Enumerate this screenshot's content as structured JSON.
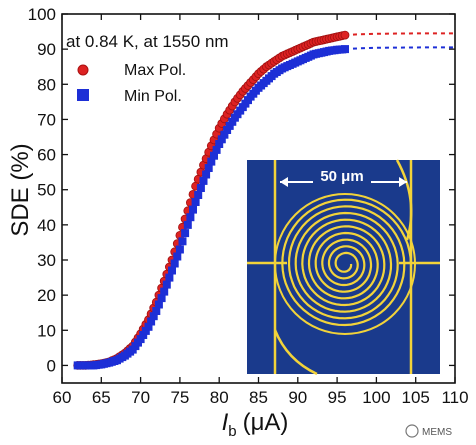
{
  "chart_data": {
    "type": "scatter",
    "xlabel_symbol": "I",
    "xlabel_sub": "b",
    "xlabel_unit": "(μA)",
    "ylabel": "SDE (%)",
    "xlim": [
      60,
      110
    ],
    "ylim": [
      -5,
      100
    ],
    "xticks": [
      60,
      65,
      70,
      75,
      80,
      85,
      90,
      95,
      100,
      105,
      110
    ],
    "yticks": [
      0,
      10,
      20,
      30,
      40,
      50,
      60,
      70,
      80,
      90,
      100
    ],
    "annotation": "at 0.84 K, at 1550 nm",
    "legend_position": "top-left",
    "series": [
      {
        "name": "Max Pol.",
        "marker": "circle",
        "color": "#dd2222",
        "fit_plateau": 94.5,
        "points": [
          [
            62,
            0
          ],
          [
            63,
            0
          ],
          [
            64,
            0.2
          ],
          [
            65,
            0.5
          ],
          [
            66,
            1
          ],
          [
            67,
            2
          ],
          [
            68,
            3.5
          ],
          [
            69,
            5.5
          ],
          [
            70,
            9
          ],
          [
            71,
            13
          ],
          [
            72,
            18
          ],
          [
            73,
            24
          ],
          [
            74,
            30
          ],
          [
            75,
            37
          ],
          [
            76,
            44
          ],
          [
            77,
            51
          ],
          [
            78,
            57
          ],
          [
            79,
            62.5
          ],
          [
            80,
            67.5
          ],
          [
            81,
            71.5
          ],
          [
            82,
            75
          ],
          [
            83,
            78
          ],
          [
            84,
            80.5
          ],
          [
            85,
            83
          ],
          [
            86,
            85
          ],
          [
            87,
            86.5
          ],
          [
            88,
            88
          ],
          [
            89,
            89
          ],
          [
            90,
            90
          ],
          [
            91,
            91
          ],
          [
            92,
            92
          ],
          [
            93,
            92.5
          ],
          [
            94,
            93
          ],
          [
            95,
            93.5
          ],
          [
            96,
            94
          ]
        ]
      },
      {
        "name": "Min Pol.",
        "marker": "square",
        "color": "#1d2fd6",
        "fit_plateau": 90.5,
        "points": [
          [
            62,
            0
          ],
          [
            63,
            0
          ],
          [
            64,
            0
          ],
          [
            65,
            0.3
          ],
          [
            66,
            0.8
          ],
          [
            67,
            1.5
          ],
          [
            68,
            2.8
          ],
          [
            69,
            4.5
          ],
          [
            70,
            7.5
          ],
          [
            71,
            11
          ],
          [
            72,
            15.5
          ],
          [
            73,
            21
          ],
          [
            74,
            27
          ],
          [
            75,
            33
          ],
          [
            76,
            40
          ],
          [
            77,
            46.5
          ],
          [
            78,
            52.5
          ],
          [
            79,
            58
          ],
          [
            80,
            63
          ],
          [
            81,
            67
          ],
          [
            82,
            70.5
          ],
          [
            83,
            73.5
          ],
          [
            84,
            76.5
          ],
          [
            85,
            79
          ],
          [
            86,
            81
          ],
          [
            87,
            83
          ],
          [
            88,
            84.5
          ],
          [
            89,
            85.5
          ],
          [
            90,
            86.5
          ],
          [
            91,
            87.5
          ],
          [
            92,
            88.5
          ],
          [
            93,
            89
          ],
          [
            94,
            89.5
          ],
          [
            95,
            89.8
          ],
          [
            96,
            90
          ]
        ]
      }
    ],
    "inset": {
      "scale_bar_label": "50 μm",
      "background_color": "#1a3a8c",
      "wire_color": "#f2d33a"
    }
  },
  "watermark": "MEMS"
}
